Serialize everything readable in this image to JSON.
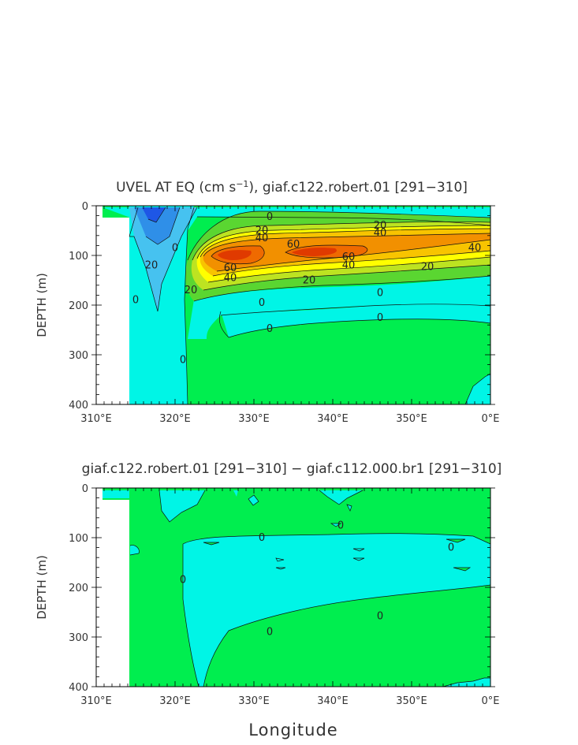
{
  "chart_data": [
    {
      "type": "contour",
      "title": "UVEL AT EQ (cm s",
      "title_sup": "−1",
      "title_tail": "), giaf.c122.robert.01 [291−310]",
      "xlabel": "",
      "ylabel": "DEPTH (m)",
      "xlim": [
        310,
        360
      ],
      "ylim": [
        400,
        0
      ],
      "x_ticks": [
        "310°E",
        "320°E",
        "330°E",
        "340°E",
        "350°E",
        "0°E"
      ],
      "y_ticks": [
        "0",
        "100",
        "200",
        "300",
        "400"
      ],
      "contour_levels": [
        -40,
        -30,
        -20,
        -10,
        0,
        10,
        20,
        30,
        40,
        50,
        60,
        70
      ],
      "contour_labels": [
        {
          "text": "0",
          "x": 332,
          "y": 22
        },
        {
          "text": "20",
          "x": 331,
          "y": 50
        },
        {
          "text": "40",
          "x": 331,
          "y": 65
        },
        {
          "text": "60",
          "x": 335,
          "y": 78
        },
        {
          "text": "20",
          "x": 346,
          "y": 40
        },
        {
          "text": "40",
          "x": 346,
          "y": 55
        },
        {
          "text": "40",
          "x": 358,
          "y": 85
        },
        {
          "text": "60",
          "x": 327,
          "y": 125
        },
        {
          "text": "40",
          "x": 327,
          "y": 145
        },
        {
          "text": "60",
          "x": 342,
          "y": 103
        },
        {
          "text": "40",
          "x": 342,
          "y": 120
        },
        {
          "text": "20",
          "x": 337,
          "y": 150
        },
        {
          "text": "20",
          "x": 352,
          "y": 123
        },
        {
          "text": "20",
          "x": 322,
          "y": 170
        },
        {
          "text": "20",
          "x": 317,
          "y": 120
        },
        {
          "text": "0",
          "x": 315,
          "y": 190
        },
        {
          "text": "0",
          "x": 331,
          "y": 195
        },
        {
          "text": "0",
          "x": 346,
          "y": 175
        },
        {
          "text": "0",
          "x": 332,
          "y": 248
        },
        {
          "text": "0",
          "x": 346,
          "y": 225
        },
        {
          "text": "0",
          "x": 320,
          "y": 85
        },
        {
          "text": "0",
          "x": 321,
          "y": 310
        }
      ]
    },
    {
      "type": "contour",
      "title": "giaf.c122.robert.01 [291−310] − giaf.c112.000.br1 [291−310]",
      "xlabel": "Longitude",
      "ylabel": "DEPTH (m)",
      "xlim": [
        310,
        360
      ],
      "ylim": [
        400,
        0
      ],
      "x_ticks": [
        "310°E",
        "320°E",
        "330°E",
        "340°E",
        "350°E",
        "0°E"
      ],
      "y_ticks": [
        "0",
        "100",
        "200",
        "300",
        "400"
      ],
      "contour_levels": [
        -10,
        0,
        10
      ],
      "contour_labels": [
        {
          "text": "0",
          "x": 331,
          "y": 100
        },
        {
          "text": "0",
          "x": 321,
          "y": 185
        },
        {
          "text": "0",
          "x": 341,
          "y": 75
        },
        {
          "text": "0",
          "x": 355,
          "y": 120
        },
        {
          "text": "0",
          "x": 346,
          "y": 258
        },
        {
          "text": "0",
          "x": 332,
          "y": 290
        }
      ]
    }
  ],
  "colors": {
    "neg_deep": "#1e57e6",
    "neg_mid": "#2f8fe8",
    "neg_light": "#46c2f0",
    "neg_small": "#00f5e6",
    "zero_pos": "#00ee4f",
    "pos_10": "#5ad631",
    "pos_20": "#bde321",
    "pos_30": "#ffff00",
    "pos_40": "#f8c400",
    "pos_50": "#f29000",
    "pos_60": "#ef6a00",
    "pos_70": "#e03a00"
  }
}
